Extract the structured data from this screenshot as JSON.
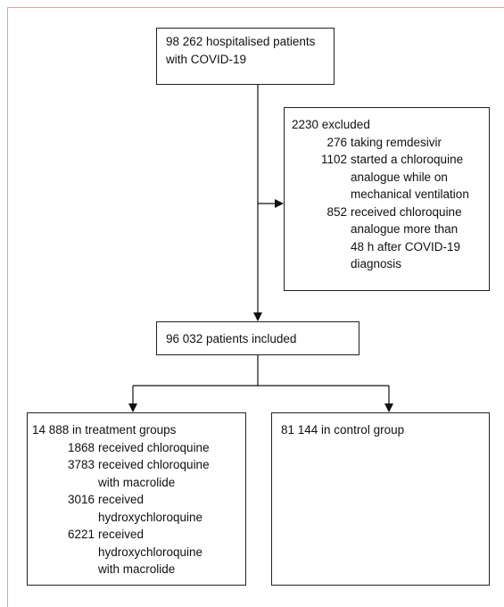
{
  "nodes": [
    {
      "lines": [
        "98 262 hospitalised patients",
        "with COVID-19"
      ]
    },
    {
      "title": "2230 excluded",
      "items": [
        {
          "number": "276",
          "lines": [
            "taking remdesivir"
          ]
        },
        {
          "number": "1102",
          "lines": [
            "started a chloroquine",
            "analogue while on",
            "mechanical ventilation"
          ]
        },
        {
          "number": "852",
          "lines": [
            "received chloroquine",
            "analogue more than",
            "48 h after COVID-19",
            "diagnosis"
          ]
        }
      ]
    },
    {
      "lines": [
        "96 032 patients included"
      ]
    },
    {
      "title": "14 888 in treatment groups",
      "items": [
        {
          "number": "1868",
          "lines": [
            "received chloroquine"
          ]
        },
        {
          "number": "3783",
          "lines": [
            "received chloroquine",
            "with macrolide"
          ]
        },
        {
          "number": "3016",
          "lines": [
            "received",
            "hydroxychloroquine"
          ]
        },
        {
          "number": "6221",
          "lines": [
            "received",
            "hydroxychloroquine",
            "with macrolide"
          ]
        }
      ]
    },
    {
      "title": "81 144 in control group"
    }
  ]
}
